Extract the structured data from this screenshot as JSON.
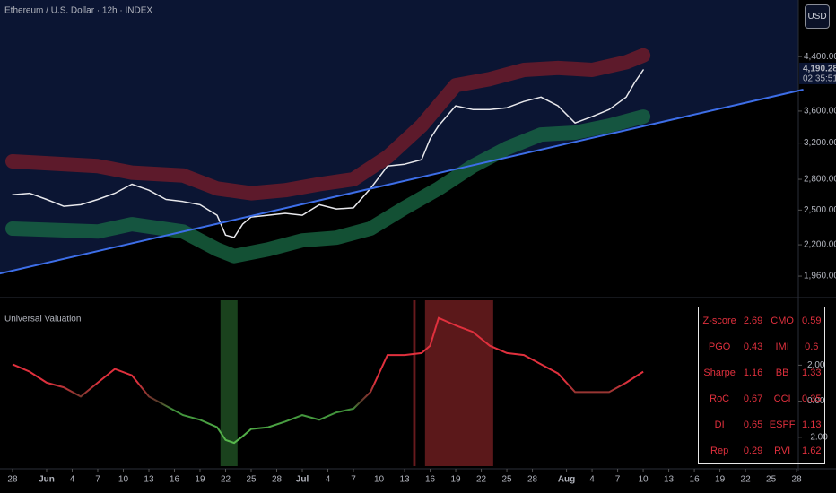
{
  "header": {
    "title": "Ethereum / U.S. Dollar · 12h · INDEX",
    "currency": "USD"
  },
  "chart_data": [
    {
      "type": "line",
      "log_scale": true,
      "xlim": [
        -1.47,
        92.2
      ],
      "ylim": [
        1823,
        5420
      ],
      "xticks": [
        {
          "value": 0,
          "label": "28"
        },
        {
          "value": 4,
          "label": "Jun"
        },
        {
          "value": 7,
          "label": "4"
        },
        {
          "value": 10,
          "label": "7"
        },
        {
          "value": 13,
          "label": "10"
        },
        {
          "value": 16,
          "label": "13"
        },
        {
          "value": 19,
          "label": "16"
        },
        {
          "value": 22,
          "label": "19"
        },
        {
          "value": 25,
          "label": "22"
        },
        {
          "value": 28,
          "label": "25"
        },
        {
          "value": 31,
          "label": "28"
        },
        {
          "value": 34,
          "label": "Jul"
        },
        {
          "value": 37,
          "label": "4"
        },
        {
          "value": 40,
          "label": "7"
        },
        {
          "value": 43,
          "label": "10"
        },
        {
          "value": 46,
          "label": "13"
        },
        {
          "value": 49,
          "label": "16"
        },
        {
          "value": 52,
          "label": "19"
        },
        {
          "value": 55,
          "label": "22"
        },
        {
          "value": 58,
          "label": "25"
        },
        {
          "value": 61,
          "label": "28"
        },
        {
          "value": 65,
          "label": "Aug"
        },
        {
          "value": 68,
          "label": "4"
        },
        {
          "value": 71,
          "label": "7"
        },
        {
          "value": 74,
          "label": "10"
        },
        {
          "value": 77,
          "label": "13"
        },
        {
          "value": 80,
          "label": "16"
        },
        {
          "value": 83,
          "label": "19"
        },
        {
          "value": 86,
          "label": "22"
        },
        {
          "value": 89,
          "label": "25"
        },
        {
          "value": 92,
          "label": "28"
        }
      ],
      "yticks": [
        {
          "value": 4400,
          "label": "4,400.00"
        },
        {
          "value": 3600,
          "label": "3,600.00"
        },
        {
          "value": 3200,
          "label": "3,200.00"
        },
        {
          "value": 2800,
          "label": "2,800.00"
        },
        {
          "value": 2500,
          "label": "2,500.00"
        },
        {
          "value": 2200,
          "label": "2,200.00"
        },
        {
          "value": 1960,
          "label": "1,960.00"
        }
      ],
      "last_price": {
        "value": 4190.28,
        "label": "4,190.28"
      },
      "countdown": "02:35:51",
      "background": "#0b1533",
      "series": [
        {
          "color": "#e8e8ec",
          "x": [
            0,
            2,
            4,
            6,
            8,
            10,
            12,
            14,
            16,
            18,
            20,
            22,
            24,
            25,
            26,
            27,
            28,
            30,
            32,
            34,
            36,
            38,
            40,
            42,
            44,
            46,
            48,
            49,
            50,
            52,
            54,
            56,
            58,
            60,
            62,
            64,
            66,
            68,
            70,
            72,
            73,
            74
          ],
          "values": [
            2645,
            2660,
            2600,
            2535,
            2550,
            2600,
            2660,
            2750,
            2690,
            2600,
            2580,
            2550,
            2453,
            2280,
            2260,
            2373,
            2437,
            2453,
            2470,
            2453,
            2550,
            2510,
            2520,
            2707,
            2940,
            2960,
            3010,
            3250,
            3412,
            3670,
            3620,
            3620,
            3645,
            3730,
            3790,
            3670,
            3446,
            3527,
            3620,
            3790,
            4000,
            4190
          ]
        },
        {
          "color": "#7a1c2a",
          "x": [
            0,
            10,
            14,
            20,
            24,
            28,
            32,
            36,
            40,
            44,
            48,
            52,
            56,
            60,
            64,
            68,
            72,
            74
          ],
          "values": [
            2991,
            2940,
            2870,
            2840,
            2707,
            2660,
            2690,
            2750,
            2800,
            3040,
            3412,
            3960,
            4050,
            4190,
            4220,
            4190,
            4310,
            4420
          ]
        },
        {
          "color": "#1a6b45",
          "x": [
            0,
            10,
            14,
            20,
            24,
            26,
            30,
            34,
            38,
            42,
            46,
            50,
            54,
            58,
            62,
            66,
            70,
            74
          ],
          "values": [
            2335,
            2310,
            2373,
            2310,
            2163,
            2110,
            2163,
            2236,
            2258,
            2335,
            2520,
            2707,
            2940,
            3140,
            3302,
            3325,
            3412,
            3527
          ]
        },
        {
          "color": "#3d6ee8",
          "x": [
            -1.47,
            92.7
          ],
          "values": [
            1979,
            3894
          ]
        }
      ]
    },
    {
      "type": "line",
      "title": "Universal Valuation",
      "xlim": [
        -1.47,
        92.2
      ],
      "ylim": [
        -3.6,
        5.6
      ],
      "yticks": [
        {
          "value": 2,
          "label": "2.00"
        },
        {
          "value": 0,
          "label": "0.00"
        },
        {
          "value": -2,
          "label": "-2.00"
        }
      ],
      "positive_color": "#e0303d",
      "negative_color": "#3f8f3a",
      "zones": [
        {
          "x": [
            24.4,
            26.4
          ],
          "color": "#1f4d22"
        },
        {
          "x": [
            47.0,
            47.3
          ],
          "color": "#7a1f22"
        },
        {
          "x": [
            48.4,
            56.4
          ],
          "color": "#6b1c1e"
        }
      ],
      "series": [
        {
          "x": [
            0,
            2,
            4,
            6,
            8,
            10,
            12,
            14,
            16,
            18,
            20,
            22,
            24,
            25,
            26,
            27,
            28,
            30,
            32,
            34,
            36,
            38,
            40,
            42,
            44,
            46,
            48,
            49,
            50,
            52,
            54,
            56,
            58,
            60,
            62,
            64,
            66,
            68,
            70,
            72,
            74
          ],
          "values": [
            2.05,
            1.64,
            1.03,
            0.77,
            0.26,
            1.03,
            1.79,
            1.44,
            0.26,
            -0.26,
            -0.77,
            -1.03,
            -1.44,
            -2.15,
            -2.31,
            -1.95,
            -1.54,
            -1.44,
            -1.13,
            -0.77,
            -1.03,
            -0.62,
            -0.41,
            0.51,
            2.56,
            2.56,
            2.67,
            3.08,
            4.62,
            4.21,
            3.85,
            3.08,
            2.67,
            2.56,
            2.05,
            1.54,
            0.51,
            0.51,
            0.51,
            1.03,
            1.64
          ]
        }
      ]
    }
  ],
  "table": {
    "rows": [
      [
        "Z-score",
        "2.69",
        "CMO",
        "0.59"
      ],
      [
        "PGO",
        "0.43",
        "IMI",
        "0.6"
      ],
      [
        "Sharpe",
        "1.16",
        "BB",
        "1.33"
      ],
      [
        "RoC",
        "0.67",
        "CCI",
        "0.35"
      ],
      [
        "DI",
        "0.65",
        "ESPF",
        "1.13"
      ],
      [
        "Rep",
        "0.29",
        "RVI",
        "1.62"
      ]
    ]
  }
}
